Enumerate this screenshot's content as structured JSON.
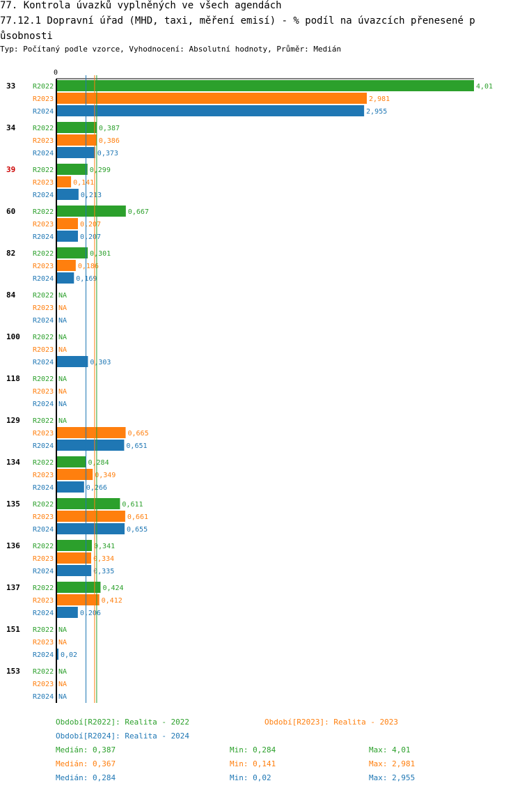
{
  "title_line1": "77. Kontrola úvazků vyplněných ve všech agendách",
  "title_line2": "77.12.1 Dopravní úřad (MHD, taxi, měření emisí) - % podíl na úvazcích přenesené p",
  "title_line3": "ůsobnosti",
  "subtitle": "Typ: Počítaný podle vzorce, Vyhodnocení: Absolutní hodnoty, Průměr: Medián",
  "chart_data": {
    "type": "bar",
    "orientation": "horizontal",
    "x_tick_label": "0",
    "categories": [
      "33",
      "34",
      "39",
      "60",
      "82",
      "84",
      "100",
      "118",
      "129",
      "134",
      "135",
      "136",
      "137",
      "151",
      "153"
    ],
    "highlighted_category": "39",
    "series": [
      {
        "name": "R2022",
        "color": "#2ca02c",
        "values": [
          4.01,
          0.387,
          0.299,
          0.667,
          0.301,
          null,
          null,
          null,
          null,
          0.284,
          0.611,
          0.341,
          0.424,
          null,
          null
        ],
        "labels": [
          "4,01",
          "0,387",
          "0,299",
          "0,667",
          "0,301",
          "NA",
          "NA",
          "NA",
          "NA",
          "0,284",
          "0,611",
          "0,341",
          "0,424",
          "NA",
          "NA"
        ]
      },
      {
        "name": "R2023",
        "color": "#ff7f0e",
        "values": [
          2.981,
          0.386,
          0.141,
          0.207,
          0.186,
          null,
          null,
          null,
          0.665,
          0.349,
          0.661,
          0.334,
          0.412,
          null,
          null
        ],
        "labels": [
          "2,981",
          "0,386",
          "0,141",
          "0,207",
          "0,186",
          "NA",
          "NA",
          "NA",
          "0,665",
          "0,349",
          "0,661",
          "0,334",
          "0,412",
          "NA",
          "NA"
        ]
      },
      {
        "name": "R2024",
        "color": "#1f77b4",
        "values": [
          2.955,
          0.373,
          0.213,
          0.207,
          0.169,
          null,
          0.303,
          null,
          0.651,
          0.266,
          0.655,
          0.335,
          0.206,
          0.02,
          null
        ],
        "labels": [
          "2,955",
          "0,373",
          "0,213",
          "0,207",
          "0,169",
          "NA",
          "0,303",
          "NA",
          "0,651",
          "0,266",
          "0,655",
          "0,335",
          "0,206",
          "0,02",
          "NA"
        ]
      }
    ],
    "medians": [
      0.387,
      0.367,
      0.284
    ],
    "xlim": [
      0,
      4.01
    ]
  },
  "legend": [
    {
      "text": "Období[R2022]: Realita - 2022",
      "color": "#2ca02c"
    },
    {
      "text": "Období[R2023]: Realita - 2023",
      "color": "#ff7f0e"
    },
    {
      "text": "Období[R2024]: Realita - 2024",
      "color": "#1f77b4"
    }
  ],
  "stats": [
    {
      "median": "Medián: 0,387",
      "min": "Min: 0,284",
      "max": "Max: 4,01",
      "color": "#2ca02c"
    },
    {
      "median": "Medián: 0,367",
      "min": "Min: 0,141",
      "max": "Max: 2,981",
      "color": "#ff7f0e"
    },
    {
      "median": "Medián: 0,284",
      "min": "Min: 0,02",
      "max": "Max: 2,955",
      "color": "#1f77b4"
    }
  ]
}
